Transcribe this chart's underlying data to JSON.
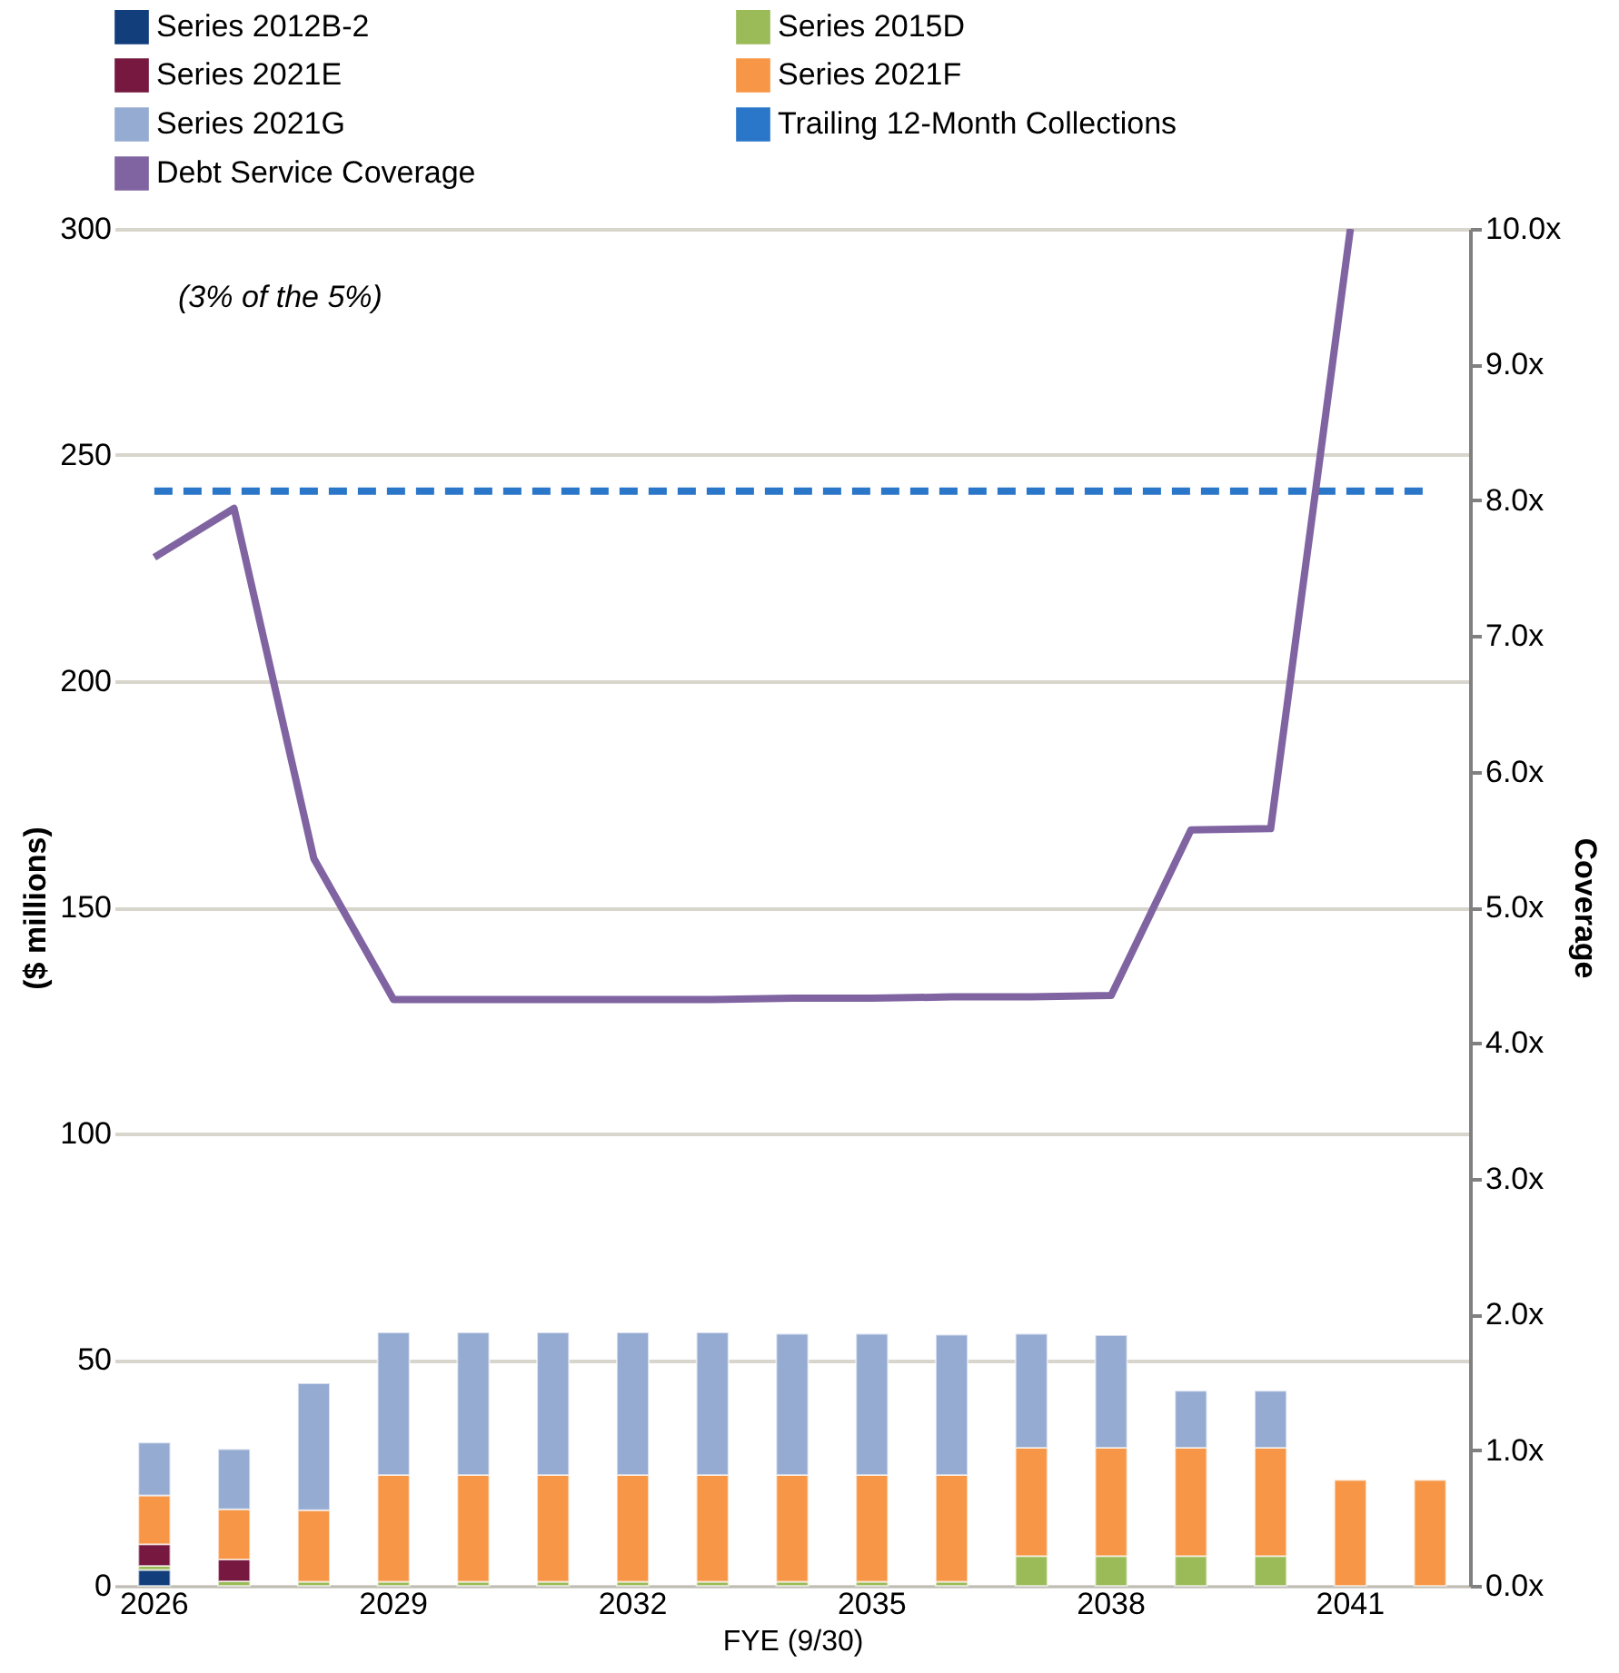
{
  "chart_data": {
    "type": "bar",
    "stacked": true,
    "categories": [
      "2026",
      null,
      null,
      "2029",
      null,
      null,
      "2032",
      null,
      null,
      "2035",
      null,
      null,
      "2038",
      null,
      null,
      "2041",
      null
    ],
    "xlabel": "FYE (9/30)",
    "ylabel": "($ millions)",
    "y2label": "Coverage",
    "ylim": [
      0,
      300
    ],
    "yticks": [
      0,
      50,
      100,
      150,
      200,
      250,
      300
    ],
    "y2lim": [
      0,
      10
    ],
    "y2ticks": [
      {
        "value": 0,
        "label": "0.0x"
      },
      {
        "value": 1,
        "label": "1.0x"
      },
      {
        "value": 2,
        "label": "2.0x"
      },
      {
        "value": 3,
        "label": "3.0x"
      },
      {
        "value": 4,
        "label": "4.0x"
      },
      {
        "value": 5,
        "label": "5.0x"
      },
      {
        "value": 6,
        "label": "6.0x"
      },
      {
        "value": 7,
        "label": "7.0x"
      },
      {
        "value": 8,
        "label": "8.0x"
      },
      {
        "value": 9,
        "label": "9.0x"
      },
      {
        "value": 10,
        "label": "10.0x"
      }
    ],
    "grid": "y",
    "legend": "top",
    "annotations": [
      "(3% of the 5%)"
    ],
    "series": [
      {
        "name": "Series 2012B-2",
        "color": "#123e7c",
        "values": [
          3.5,
          null,
          null,
          null,
          null,
          null,
          null,
          null,
          null,
          null,
          null,
          null,
          null,
          null,
          null,
          null,
          null
        ]
      },
      {
        "name": "Series 2015D",
        "color": "#9bbb59",
        "values": [
          0.9,
          1.0,
          0.9,
          0.9,
          0.9,
          0.9,
          0.9,
          0.9,
          0.9,
          0.9,
          0.9,
          6.6,
          6.6,
          6.6,
          6.6,
          null,
          null
        ]
      },
      {
        "name": "Series 2021E",
        "color": "#76183f",
        "values": [
          4.8,
          4.8,
          null,
          null,
          null,
          null,
          null,
          null,
          null,
          null,
          null,
          null,
          null,
          null,
          null,
          null,
          null
        ]
      },
      {
        "name": "Series 2021F",
        "color": "#f79646",
        "values": [
          10.8,
          11.1,
          15.8,
          23.6,
          23.6,
          23.6,
          23.6,
          23.6,
          23.6,
          23.6,
          23.6,
          23.9,
          23.9,
          23.9,
          23.9,
          23.4,
          23.4
        ]
      },
      {
        "name": "Series 2021G",
        "color": "#95abd2",
        "values": [
          11.7,
          13.3,
          28.1,
          31.5,
          31.5,
          31.5,
          31.5,
          31.5,
          31.2,
          31.2,
          31.0,
          25.2,
          24.9,
          12.6,
          12.6,
          null,
          null
        ]
      },
      {
        "name": "Trailing 12-Month Collections",
        "color": "#2a76c9",
        "type": "line",
        "line_style": "dashed",
        "values": [
          242,
          242,
          242,
          242,
          242,
          242,
          242,
          242,
          242,
          242,
          242,
          242,
          242,
          242,
          242,
          242,
          242
        ]
      },
      {
        "name": "Debt Service Coverage",
        "color": "#8064a2",
        "type": "line",
        "line_style": "solid",
        "axis": "y2",
        "values": [
          7.58,
          7.94,
          5.36,
          4.32,
          4.32,
          4.32,
          4.32,
          4.32,
          4.33,
          4.33,
          4.34,
          4.34,
          4.35,
          5.57,
          5.58,
          10.0,
          null
        ]
      }
    ]
  }
}
